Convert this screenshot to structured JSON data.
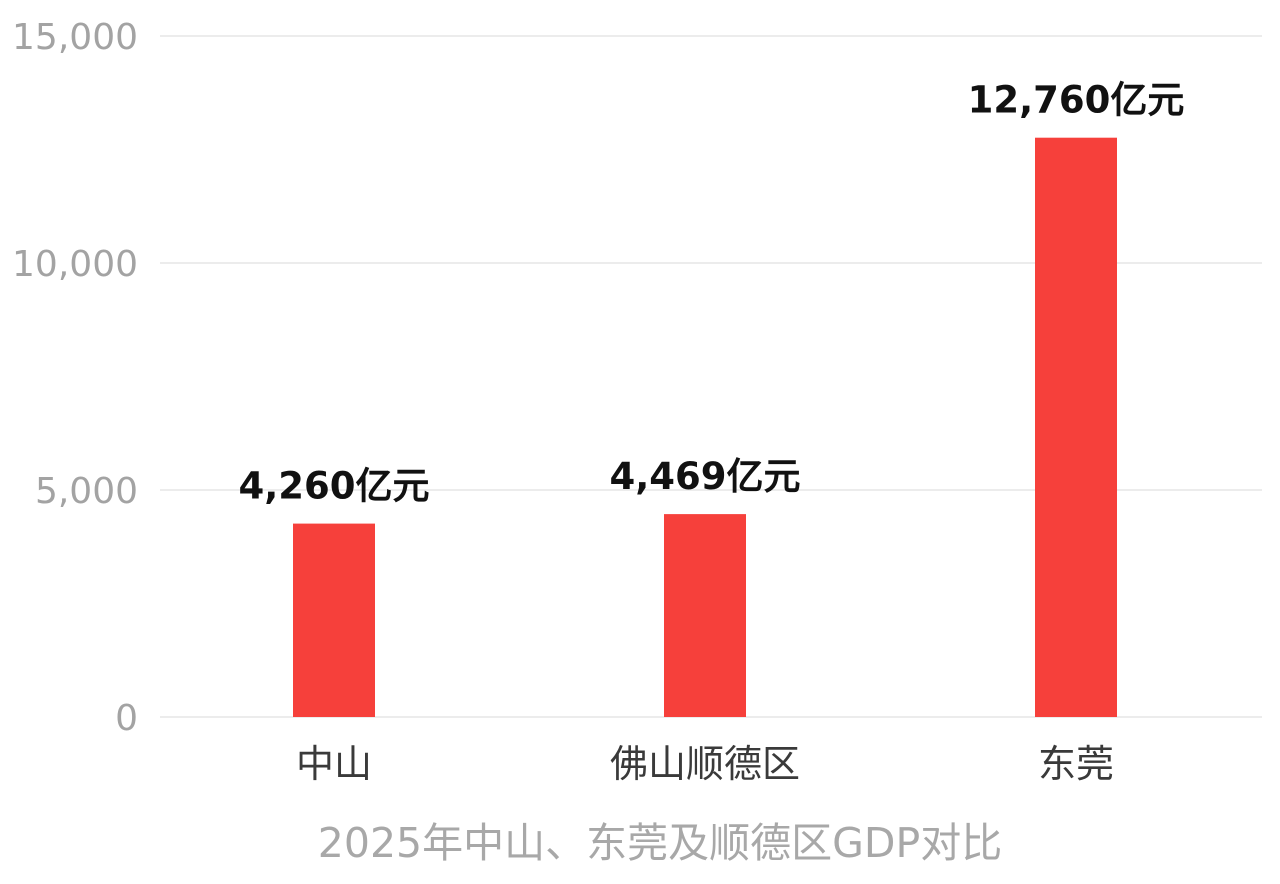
{
  "chart_data": {
    "type": "bar",
    "title": "2025年中山、东莞及顺德区GDP对比",
    "categories": [
      "中山",
      "佛山顺德区",
      "东莞"
    ],
    "values": [
      4260,
      4469,
      12760
    ],
    "data_labels": [
      "4,260亿元",
      "4,469亿元",
      "12,760亿元"
    ],
    "y_ticks": [
      0,
      5000,
      10000,
      15000
    ],
    "y_tick_labels": [
      "0",
      "5,000",
      "10,000",
      "15,000"
    ],
    "ylim": [
      0,
      15000
    ],
    "bar_color": "#f6403b",
    "grid": true,
    "legend": "none"
  }
}
